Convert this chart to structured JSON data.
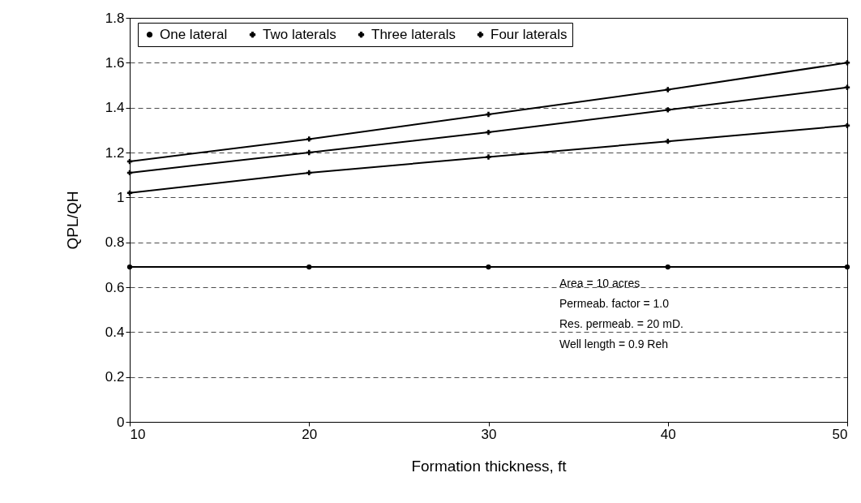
{
  "chart_data": {
    "type": "line",
    "xlabel": "Formation thickness, ft",
    "ylabel": "QPL/QH",
    "x": [
      10,
      20,
      30,
      40,
      50
    ],
    "series": [
      {
        "name": "One lateral",
        "color": "#000000",
        "marker": "circle",
        "values": [
          0.69,
          0.69,
          0.69,
          0.69,
          0.69
        ]
      },
      {
        "name": "Two laterals",
        "color": "#000000",
        "marker": "cross",
        "values": [
          1.02,
          1.11,
          1.18,
          1.25,
          1.32
        ]
      },
      {
        "name": "Three laterals",
        "color": "#000000",
        "marker": "cross",
        "values": [
          1.11,
          1.2,
          1.29,
          1.39,
          1.49
        ]
      },
      {
        "name": "Four laterals",
        "color": "#000000",
        "marker": "cross",
        "values": [
          1.16,
          1.26,
          1.37,
          1.48,
          1.6
        ]
      }
    ],
    "xlim": [
      10,
      50
    ],
    "xticks": [
      10,
      20,
      30,
      40,
      50
    ],
    "ylim": [
      0,
      1.8
    ],
    "yticks": [
      0,
      0.2,
      0.4,
      0.6,
      0.8,
      1,
      1.2,
      1.4,
      1.6,
      1.8
    ],
    "grid": "y",
    "legend": "top",
    "line_style": "solid",
    "annotations": [
      "Area = 10 acres",
      "Permeab. factor = 1.0",
      "Res. permeab. = 20 mD.",
      "Well length = 0.9 Reh"
    ]
  }
}
